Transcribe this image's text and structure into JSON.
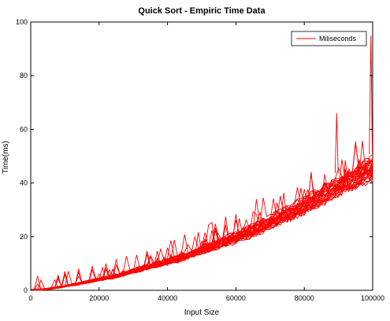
{
  "chart_data": {
    "type": "line",
    "title": "Quick Sort - Empiric Time Data",
    "xlabel": "Input Size",
    "ylabel": "Time(ms)",
    "xlim": [
      0,
      100000
    ],
    "ylim": [
      0,
      100
    ],
    "x_ticks": [
      0,
      20000,
      40000,
      60000,
      80000,
      100000
    ],
    "y_ticks": [
      0,
      20,
      40,
      60,
      80,
      100
    ],
    "grid": false,
    "legend": {
      "position": "top-right",
      "entries": [
        "Miliseconds"
      ]
    },
    "line_color": "#ff0000",
    "run_count": 30,
    "x": [
      0,
      5000,
      10000,
      15000,
      20000,
      25000,
      30000,
      35000,
      40000,
      45000,
      50000,
      55000,
      60000,
      65000,
      70000,
      75000,
      80000,
      85000,
      90000,
      95000,
      98000,
      100000
    ],
    "series": [
      {
        "name": "Miliseconds",
        "values": [
          0,
          0.5,
          1.5,
          2.7,
          4.0,
          5.3,
          7.0,
          8.8,
          10.5,
          12.5,
          14.8,
          17.0,
          19.5,
          22.0,
          25.0,
          28.0,
          31.0,
          34.5,
          38.0,
          41.5,
          43.5,
          45.0
        ]
      }
    ],
    "annotations": [
      {
        "x": 89500,
        "y": 66
      },
      {
        "x": 99500,
        "y": 95
      }
    ]
  }
}
